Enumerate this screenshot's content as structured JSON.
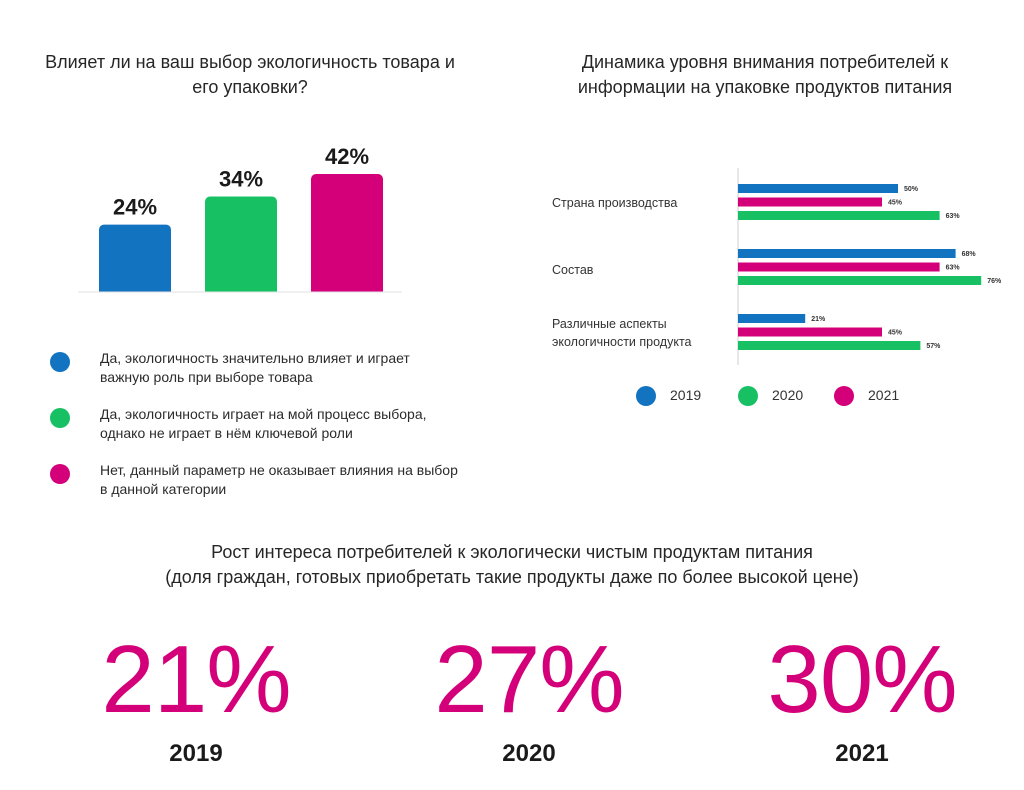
{
  "colors": {
    "blue": "#1273c0",
    "green": "#18c064",
    "magenta": "#d4007a"
  },
  "chart_data": [
    {
      "type": "bar",
      "title": "Влияет ли на ваш выбор экологичность товара и его упаковки?",
      "categories": [
        "Да, экологичность значительно влияет и играет важную роль при выборе товара",
        "Да, экологичность играет на мой процесс выбора, однако не играет в нём ключевой роли",
        "Нет, данный параметр не оказывает влияния на выбор в данной категории"
      ],
      "values": [
        24,
        34,
        42
      ],
      "value_labels": [
        "24%",
        "34%",
        "42%"
      ],
      "bar_colors": [
        "#1273c0",
        "#18c064",
        "#d4007a"
      ],
      "ylim": [
        0,
        42
      ],
      "grid": false,
      "legend": "bottom"
    },
    {
      "type": "bar",
      "orientation": "horizontal",
      "title": "Динамика уровня внимания потребителей к информации на упаковке продуктов питания",
      "categories": [
        "Страна производства",
        "Состав",
        "Различные аспекты экологичности продукта"
      ],
      "series": [
        {
          "name": "2019",
          "color": "#1273c0",
          "values": [
            50,
            68,
            21
          ],
          "labels": [
            "50%",
            "68%",
            "21%"
          ]
        },
        {
          "name": "2021",
          "color": "#d4007a",
          "values": [
            45,
            63,
            45
          ],
          "labels": [
            "45%",
            "63%",
            "45%"
          ]
        },
        {
          "name": "2020",
          "color": "#18c064",
          "values": [
            63,
            76,
            57
          ],
          "labels": [
            "63%",
            "76%",
            "57%"
          ]
        }
      ],
      "xlim": [
        0,
        100
      ],
      "grid": false,
      "legend": "bottom"
    }
  ],
  "chart2_legend": [
    {
      "label": "2019",
      "color": "#1273c0"
    },
    {
      "label": "2020",
      "color": "#18c064"
    },
    {
      "label": "2021",
      "color": "#d4007a"
    }
  ],
  "stats": {
    "title_line1": "Рост интереса потребителей к экологически чистым продуктам питания",
    "title_line2": "(доля граждан, готовых приобретать такие продукты даже по более высокой цене)",
    "items": [
      {
        "value": "21%",
        "year": "2019"
      },
      {
        "value": "27%",
        "year": "2020"
      },
      {
        "value": "30%",
        "year": "2021"
      }
    ]
  }
}
